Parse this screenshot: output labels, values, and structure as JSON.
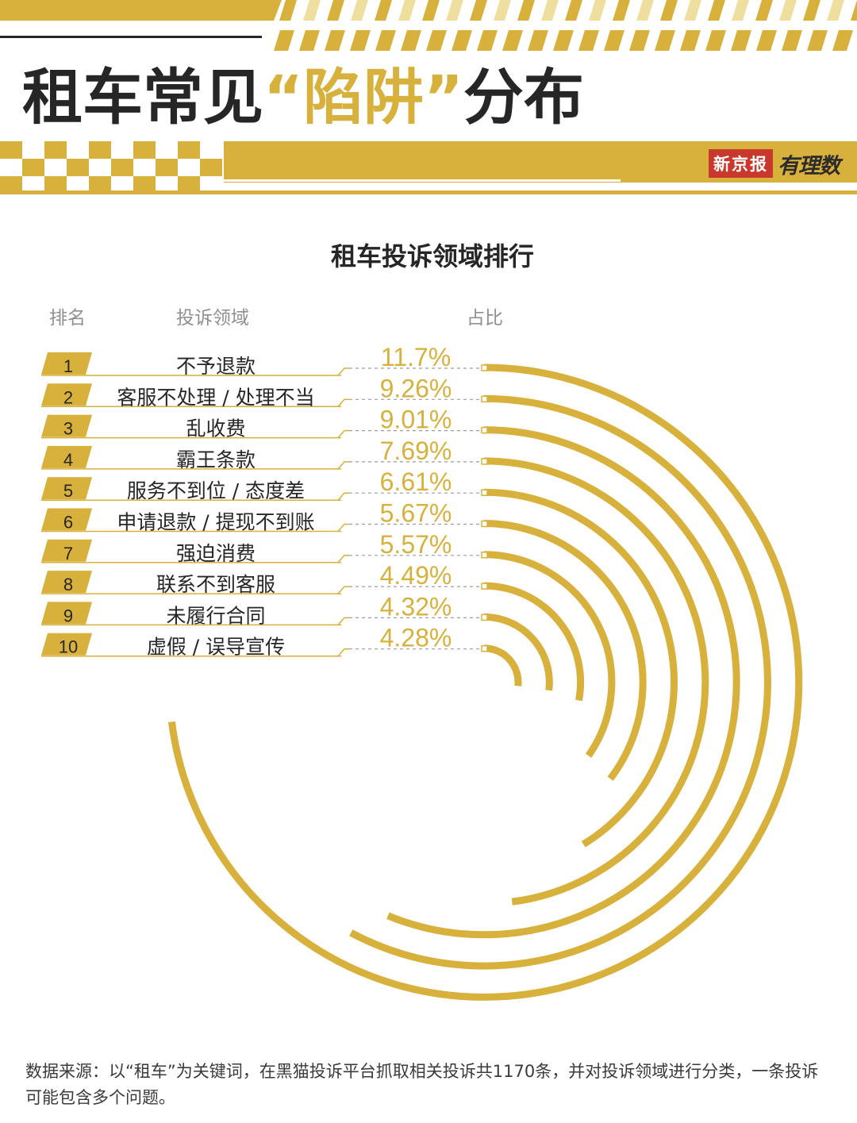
{
  "header": {
    "title_main": "租车常见",
    "title_quote": "“陷阱”",
    "title_end": "分布",
    "brand_paper": "新京报",
    "brand_sub": "有理数"
  },
  "colors": {
    "gold": "#d8b13c",
    "dark": "#262626",
    "brand_red": "#c8382c"
  },
  "chart_data": {
    "type": "bar",
    "title": "租车投诉领域排行",
    "columns": {
      "rank": "排名",
      "category": "投诉领域",
      "share": "占比"
    },
    "rows": [
      {
        "rank": "1",
        "category": "不予退款",
        "value": 11.7,
        "label": "11.7%"
      },
      {
        "rank": "2",
        "category": "客服不处理 / 处理不当",
        "value": 9.26,
        "label": "9.26%"
      },
      {
        "rank": "3",
        "category": "乱收费",
        "value": 9.01,
        "label": "9.01%"
      },
      {
        "rank": "4",
        "category": "霸王条款",
        "value": 7.69,
        "label": "7.69%"
      },
      {
        "rank": "5",
        "category": "服务不到位 / 态度差",
        "value": 6.61,
        "label": "6.61%"
      },
      {
        "rank": "6",
        "category": "申请退款 / 提现不到账",
        "value": 5.67,
        "label": "5.67%"
      },
      {
        "rank": "7",
        "category": "强迫消费",
        "value": 5.57,
        "label": "5.57%"
      },
      {
        "rank": "8",
        "category": "联系不到客服",
        "value": 4.49,
        "label": "4.49%"
      },
      {
        "rank": "9",
        "category": "未履行合同",
        "value": 4.32,
        "label": "4.32%"
      },
      {
        "rank": "10",
        "category": "虚假 / 误导宣传",
        "value": 4.28,
        "label": "4.28%"
      }
    ]
  },
  "footnote": "数据来源：以“租车”为关键词，在黑猫投诉平台抓取相关投诉共1170条，并对投诉领域进行分类，一条投诉可能包含多个问题。"
}
